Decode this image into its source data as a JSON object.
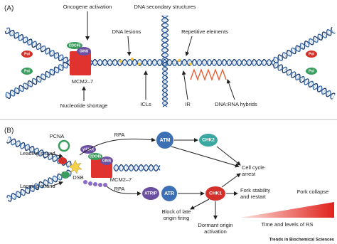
{
  "panel_a": {
    "label": "(A)",
    "oncogene_activation": "Oncogene activation",
    "dna_secondary_structures": "DNA secondary structures",
    "dna_lesions": "DNA lesions",
    "repetitive_elements": "Repetitive elements",
    "cdc45": "CDC45",
    "gins": "GINS",
    "mcm": "MCM2–7",
    "pol": "Pol",
    "nucleotide_shortage": "Nucleotide shortage",
    "icls": "ICLs",
    "ir": "IR",
    "dna_rna_hybrids": "DNA:RNA hybrids"
  },
  "panel_b": {
    "label": "(B)",
    "pcna": "PCNA",
    "leading_strand": "Leading strand",
    "lagging_strand": "Lagging strand",
    "dsb": "DSB",
    "gamma_h2ax": "γH2AX",
    "cdc45": "CDC45",
    "gins": "GINS",
    "mcm": "MCM2–7",
    "rpa": "RPA",
    "atm": "ATM",
    "chk2": "CHK2",
    "atrip": "ATRIP",
    "atr": "ATR",
    "chk1": "CHK1",
    "cell_cycle_arrest": [
      "Cell cycle",
      "arrest"
    ],
    "fork_stability": [
      "Fork stability",
      "and restart"
    ],
    "fork_collapse": "Fork collapse",
    "block_late_origin": [
      "Block of late",
      "origin firing"
    ],
    "dormant_origin": [
      "Dormant origin",
      "activation"
    ],
    "time_levels": "Time and levels of RS"
  },
  "footer": "Trends in Biochemical Sciences"
}
